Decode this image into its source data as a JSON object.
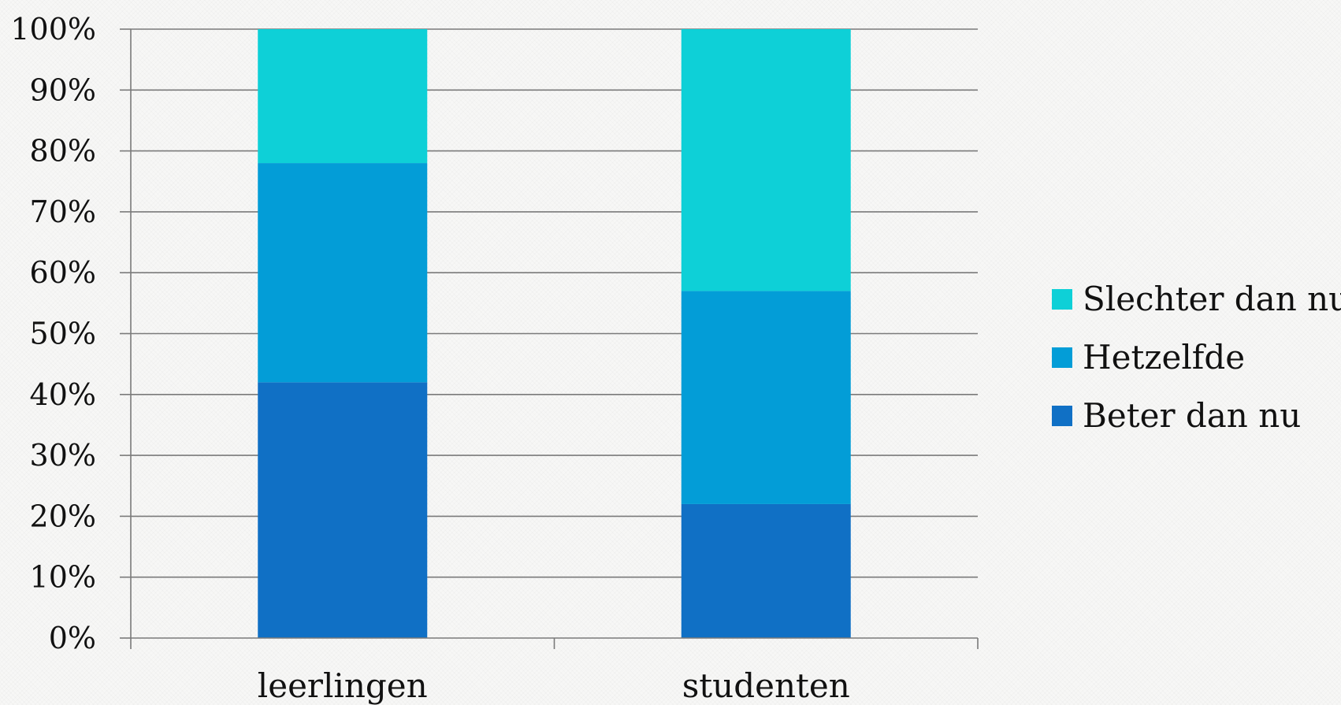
{
  "chart_data": {
    "type": "bar",
    "stacked": true,
    "categories": [
      "leerlingen",
      "studenten"
    ],
    "series": [
      {
        "name": "Beter dan nu",
        "values": [
          42,
          22
        ],
        "color": "#1070c5"
      },
      {
        "name": "Hetzelfde",
        "values": [
          36,
          35
        ],
        "color": "#039dd7"
      },
      {
        "name": "Slechter dan nu",
        "values": [
          22,
          43
        ],
        "color": "#0ed0d7"
      }
    ],
    "ylim": [
      0,
      100
    ],
    "yticks": [
      "0%",
      "10%",
      "20%",
      "30%",
      "40%",
      "50%",
      "60%",
      "70%",
      "80%",
      "90%",
      "100%"
    ],
    "grid": true,
    "legend_position": "right",
    "legend_order": [
      "Slechter dan nu",
      "Hetzelfde",
      "Beter dan nu"
    ],
    "title": "",
    "xlabel": "",
    "ylabel": ""
  }
}
